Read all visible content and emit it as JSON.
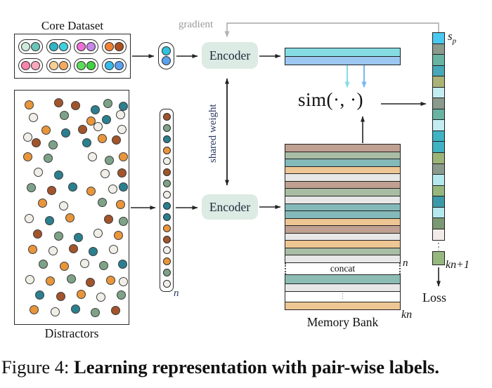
{
  "caption": {
    "prefix": "Figure 4: ",
    "bold": "Learning representation with pair-wise labels."
  },
  "core_dataset": {
    "label": "Core Dataset",
    "pairs": [
      [
        "#cde9da",
        "#6ac5b8"
      ],
      [
        "#2fb5c4",
        "#3ed0dc"
      ],
      [
        "#ef6fd8",
        "#c887ea"
      ],
      [
        "#f28132",
        "#ad4f1f"
      ],
      [
        "#f983ab",
        "#f9a8bc"
      ],
      [
        "#f7cf96",
        "#f2aa60"
      ],
      [
        "#5ade5a",
        "#3ed43e"
      ],
      [
        "#35bbe8",
        "#5aa0ee"
      ]
    ]
  },
  "sample_pair": [
    "#33c0dc",
    "#5aa0ee"
  ],
  "distractors": {
    "label": "Distractors",
    "palette": [
      "#e9953b",
      "#f1eee8",
      "#a2542b",
      "#2b7f8e",
      "#7ea287"
    ],
    "dots": [
      [
        14,
        14,
        0
      ],
      [
        56,
        11,
        2
      ],
      [
        80,
        15,
        2
      ],
      [
        108,
        21,
        3
      ],
      [
        126,
        12,
        4
      ],
      [
        148,
        16,
        3
      ],
      [
        20,
        32,
        1
      ],
      [
        64,
        29,
        4
      ],
      [
        102,
        37,
        0
      ],
      [
        124,
        35,
        3
      ],
      [
        144,
        28,
        1
      ],
      [
        38,
        50,
        0
      ],
      [
        12,
        60,
        1
      ],
      [
        66,
        54,
        3
      ],
      [
        90,
        49,
        2
      ],
      [
        112,
        45,
        1
      ],
      [
        146,
        49,
        1
      ],
      [
        24,
        68,
        2
      ],
      [
        48,
        71,
        4
      ],
      [
        96,
        68,
        3
      ],
      [
        118,
        62,
        0
      ],
      [
        138,
        64,
        2
      ],
      [
        12,
        88,
        0
      ],
      [
        41,
        90,
        4
      ],
      [
        104,
        88,
        1
      ],
      [
        128,
        93,
        4
      ],
      [
        148,
        88,
        0
      ],
      [
        27,
        110,
        1
      ],
      [
        56,
        114,
        3
      ],
      [
        122,
        112,
        1
      ],
      [
        146,
        111,
        2
      ],
      [
        17,
        132,
        4
      ],
      [
        46,
        136,
        2
      ],
      [
        76,
        131,
        3
      ],
      [
        102,
        137,
        0
      ],
      [
        133,
        134,
        1
      ],
      [
        148,
        131,
        3
      ],
      [
        33,
        154,
        0
      ],
      [
        63,
        158,
        1
      ],
      [
        118,
        153,
        4
      ],
      [
        144,
        156,
        0
      ],
      [
        14,
        176,
        1
      ],
      [
        43,
        179,
        3
      ],
      [
        72,
        175,
        0
      ],
      [
        127,
        177,
        2
      ],
      [
        148,
        180,
        4
      ],
      [
        26,
        198,
        2
      ],
      [
        56,
        201,
        4
      ],
      [
        84,
        203,
        3
      ],
      [
        112,
        197,
        1
      ],
      [
        141,
        200,
        0
      ],
      [
        19,
        220,
        0
      ],
      [
        48,
        222,
        1
      ],
      [
        77,
        219,
        2
      ],
      [
        105,
        223,
        3
      ],
      [
        134,
        220,
        1
      ],
      [
        34,
        241,
        4
      ],
      [
        64,
        244,
        0
      ],
      [
        93,
        240,
        1
      ],
      [
        120,
        243,
        4
      ],
      [
        147,
        241,
        3
      ],
      [
        15,
        263,
        1
      ],
      [
        44,
        265,
        0
      ],
      [
        74,
        262,
        4
      ],
      [
        101,
        267,
        2
      ],
      [
        130,
        264,
        0
      ],
      [
        148,
        266,
        1
      ],
      [
        29,
        285,
        3
      ],
      [
        59,
        287,
        2
      ],
      [
        88,
        284,
        0
      ],
      [
        116,
        288,
        1
      ],
      [
        145,
        285,
        4
      ],
      [
        21,
        306,
        0
      ],
      [
        51,
        309,
        1
      ],
      [
        80,
        305,
        3
      ],
      [
        108,
        310,
        4
      ],
      [
        137,
        307,
        2
      ]
    ]
  },
  "column": {
    "label_n": "n",
    "dots": [
      2,
      4,
      3,
      0,
      1,
      2,
      4,
      1,
      3,
      3,
      0,
      2,
      1,
      0,
      4,
      1
    ]
  },
  "encoders": {
    "label": "Encoder",
    "fill": "#dcebe3",
    "shared_weight": "shared weight",
    "gradient": "gradient"
  },
  "embedding": {
    "top": "#85dce2",
    "bottom": "#9cc7f0"
  },
  "sim_label": "sim(·, ·)",
  "memory_bank": {
    "label": "Memory Bank",
    "concat": "concat",
    "n": "n",
    "kn": "kn",
    "bars": [
      "#bfa091",
      "#a9bda5",
      "#84b9b9",
      "#edc694",
      "#e7e7e7",
      "#bfa091",
      "#a9bda5",
      "#e7e7e7",
      "#84b9b9",
      "#84b9b9",
      "#edc694",
      "#bfa091",
      "#e7e7e7",
      "#edc694",
      "#a9bda5",
      "#e7e7e7"
    ],
    "tail": [
      {
        "color": "#8cbcb4",
        "h": 13,
        "dots": ""
      },
      {
        "color": "#e7e7e7",
        "h": 10,
        "dots": ""
      },
      {
        "color": "#ffffff",
        "h": 15,
        "dots": "⋮"
      },
      {
        "color": "#edc694",
        "h": 11,
        "dots": ""
      }
    ]
  },
  "result": {
    "sp_base": "s",
    "sp_sub": "p",
    "cells": [
      "#49c9ef",
      "#8a9a8c",
      "#68b3a2",
      "#47a8b8",
      "#aab276",
      "#c4edf2",
      "#8a9a8c",
      "#68b3a2",
      "#c4edf2",
      "#3eb3c4",
      "#3eb3c4",
      "#9cb478",
      "#8a9a8c",
      "#b4e9f0",
      "#95b77d",
      "#3b99a8",
      "#b4e9f0",
      "#7b9a73",
      "#f1ece9"
    ],
    "green_cell": "#96b87e",
    "kn_plus_1": "kn+1",
    "loss": "Loss"
  }
}
